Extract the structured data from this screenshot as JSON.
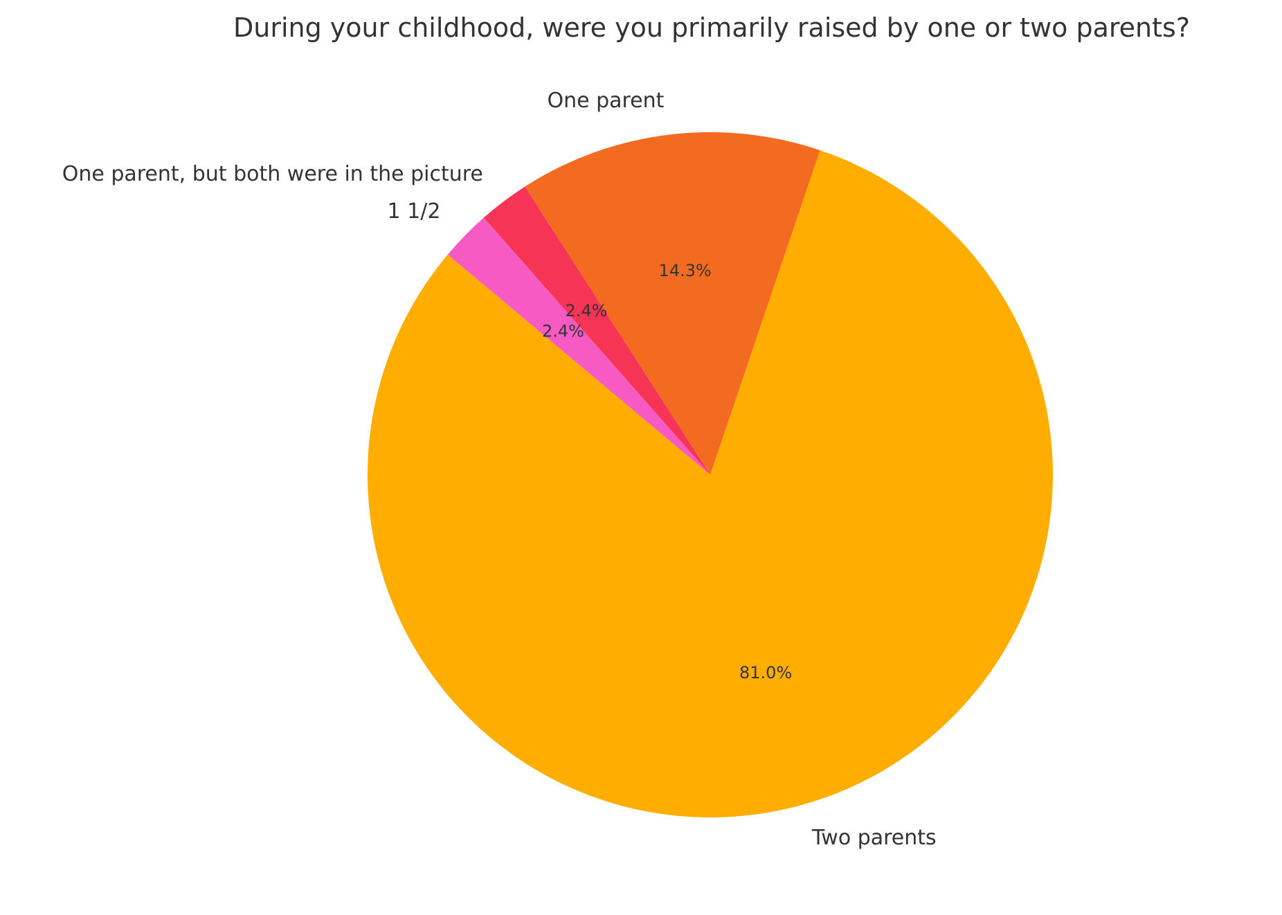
{
  "chart_data": {
    "type": "pie",
    "title": "During your childhood, were you primarily raised by one or two parents?",
    "slices": [
      {
        "label": "Two parents",
        "value": 81.0,
        "pct_label": "81.0%",
        "color": "#FFAE00"
      },
      {
        "label": "One parent",
        "value": 14.3,
        "pct_label": "14.3%",
        "color": "#F26B21"
      },
      {
        "label": "One parent, but both were in the picture",
        "value": 2.4,
        "pct_label": "2.4%",
        "color": "#F63455"
      },
      {
        "label": "1 1/2",
        "value": 2.4,
        "pct_label": "2.4%",
        "color": "#F75AC2"
      }
    ],
    "legend": "none"
  }
}
